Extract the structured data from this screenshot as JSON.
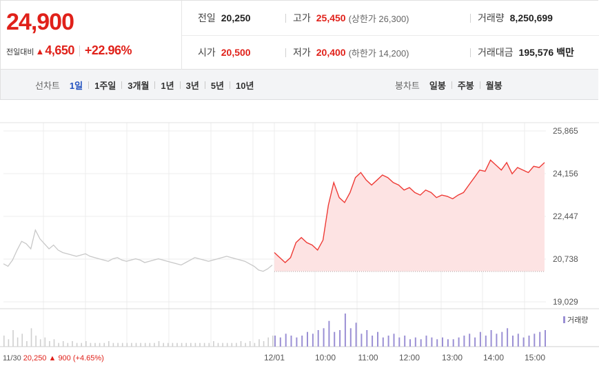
{
  "quote": {
    "current_price": "24,900",
    "change_label": "전일대비",
    "up_symbol": "▲",
    "change_amount": "4,650",
    "change_pct": "+22.96%"
  },
  "stats": {
    "prev_close": {
      "label": "전일",
      "value": "20,250"
    },
    "high": {
      "label": "고가",
      "value": "25,450",
      "sub": "(상한가 26,300)"
    },
    "volume": {
      "label": "거래량",
      "value": "8,250,699"
    },
    "open": {
      "label": "시가",
      "value": "20,500"
    },
    "low": {
      "label": "저가",
      "value": "20,400",
      "sub": "(하한가 14,200)"
    },
    "trade_value": {
      "label": "거래대금",
      "value": "195,576",
      "unit": "백만"
    }
  },
  "tabs": {
    "line_label": "선차트",
    "line_tabs": [
      "1일",
      "1주일",
      "3개월",
      "1년",
      "3년",
      "5년",
      "10년"
    ],
    "line_active_index": 0,
    "candle_label": "봉차트",
    "candle_tabs": [
      "일봉",
      "주봉",
      "월봉"
    ]
  },
  "colors": {
    "up": "#e0211a",
    "active_tab": "#1f4fbf",
    "today_line": "#ee3a35",
    "today_fill": "#fde3e3",
    "prev_line": "#c8c8c8",
    "volume_today": "#9a8fd4",
    "volume_prev": "#cfcfcf",
    "reference_line": "#555555"
  },
  "chart_data": {
    "type": "line",
    "price_ticks": [
      "25,865",
      "24,156",
      "22,447",
      "20,738",
      "19,029"
    ],
    "ylim": [
      19029,
      25865
    ],
    "reference_value": 20250,
    "x_labels": [
      "12/01",
      "10:00",
      "11:00",
      "12:00",
      "13:00",
      "14:00",
      "15:00"
    ],
    "volume_legend": "거래량",
    "prev_day_label": {
      "date": "11/30",
      "close": "20,250",
      "symbol": "▲",
      "change": "900",
      "pct": "(+4.65%)"
    },
    "series": [
      {
        "session": "11/30",
        "values": [
          20550,
          20450,
          20700,
          21100,
          21450,
          21350,
          21150,
          21900,
          21550,
          21350,
          21150,
          21300,
          21100,
          21000,
          20950,
          20900,
          20850,
          20900,
          20950,
          20850,
          20800,
          20750,
          20700,
          20650,
          20750,
          20800,
          20700,
          20650,
          20700,
          20750,
          20700,
          20600,
          20650,
          20700,
          20750,
          20700,
          20650,
          20600,
          20550,
          20500,
          20600,
          20700,
          20800,
          20750,
          20700,
          20650,
          20700,
          20750,
          20800,
          20850,
          20800,
          20750,
          20700,
          20650,
          20550,
          20450,
          20300,
          20250,
          20350,
          20500
        ]
      },
      {
        "session": "12/01",
        "values": [
          21000,
          20800,
          20600,
          20800,
          21400,
          21600,
          21400,
          21300,
          21100,
          21500,
          22900,
          23800,
          23200,
          23000,
          23400,
          24000,
          24200,
          23900,
          23700,
          23900,
          24100,
          24000,
          23800,
          23700,
          23500,
          23600,
          23400,
          23300,
          23500,
          23400,
          23200,
          23300,
          23250,
          23150,
          23300,
          23400,
          23700,
          24000,
          24300,
          24250,
          24700,
          24500,
          24300,
          24600,
          24150,
          24400,
          24300,
          24200,
          24450,
          24400,
          24600
        ]
      }
    ],
    "volume": {
      "prev": [
        6,
        4,
        9,
        5,
        7,
        3,
        10,
        6,
        4,
        5,
        3,
        4,
        2,
        3,
        2,
        3,
        2,
        2,
        3,
        2,
        2,
        2,
        2,
        3,
        2,
        2,
        2,
        2,
        2,
        2,
        2,
        2,
        2,
        2,
        3,
        2,
        2,
        2,
        2,
        2,
        2,
        2,
        2,
        2,
        2,
        2,
        3,
        2,
        2,
        2,
        2,
        2,
        3,
        2,
        3,
        2,
        4,
        3,
        5,
        6
      ],
      "today": [
        6,
        5,
        7,
        6,
        5,
        6,
        8,
        7,
        9,
        10,
        14,
        8,
        9,
        18,
        10,
        13,
        7,
        9,
        6,
        8,
        5,
        6,
        7,
        5,
        6,
        4,
        5,
        4,
        6,
        5,
        4,
        5,
        4,
        4,
        5,
        6,
        7,
        5,
        8,
        6,
        9,
        7,
        8,
        10,
        6,
        7,
        5,
        6,
        7,
        8,
        9
      ]
    }
  }
}
